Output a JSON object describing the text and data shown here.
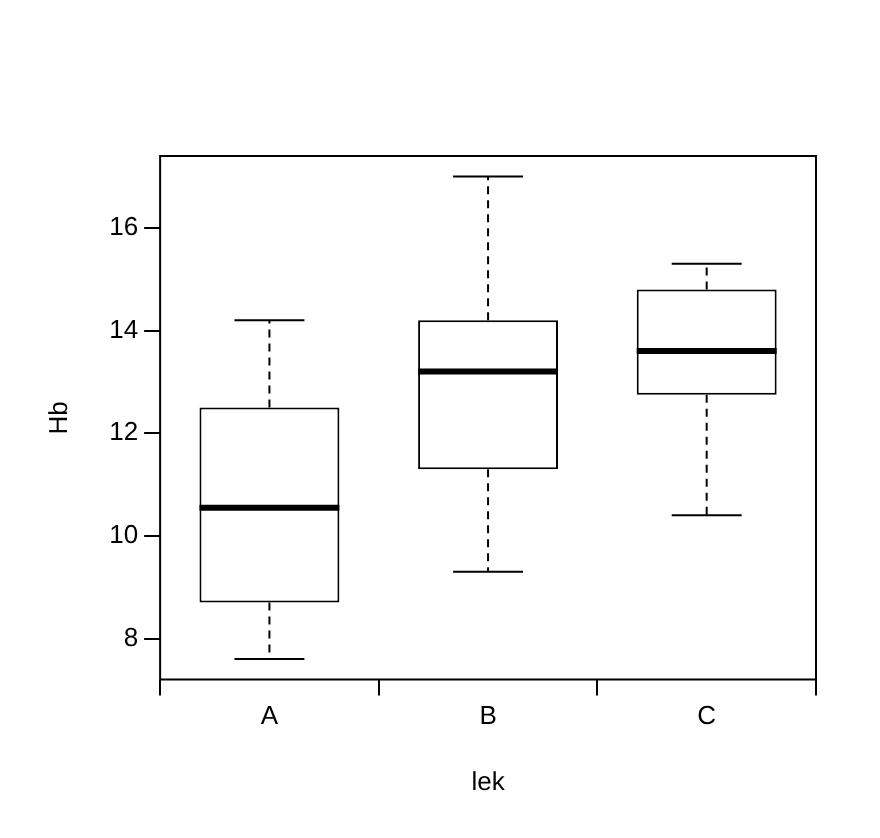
{
  "chart_data": {
    "type": "box",
    "xlabel": "lek",
    "ylabel": "Hb",
    "categories": [
      "A",
      "B",
      "C"
    ],
    "boxes": [
      {
        "low": 7.6,
        "q1": 8.7,
        "median": 10.55,
        "q3": 12.5,
        "high": 14.2
      },
      {
        "low": 9.3,
        "q1": 11.3,
        "median": 13.2,
        "q3": 14.2,
        "high": 17.0
      },
      {
        "low": 10.4,
        "q1": 12.75,
        "median": 13.6,
        "q3": 14.8,
        "high": 15.3
      }
    ],
    "ylim": [
      7.2,
      17.4
    ],
    "yticks": [
      8,
      10,
      12,
      14,
      16
    ],
    "grid": false,
    "legend": false
  }
}
